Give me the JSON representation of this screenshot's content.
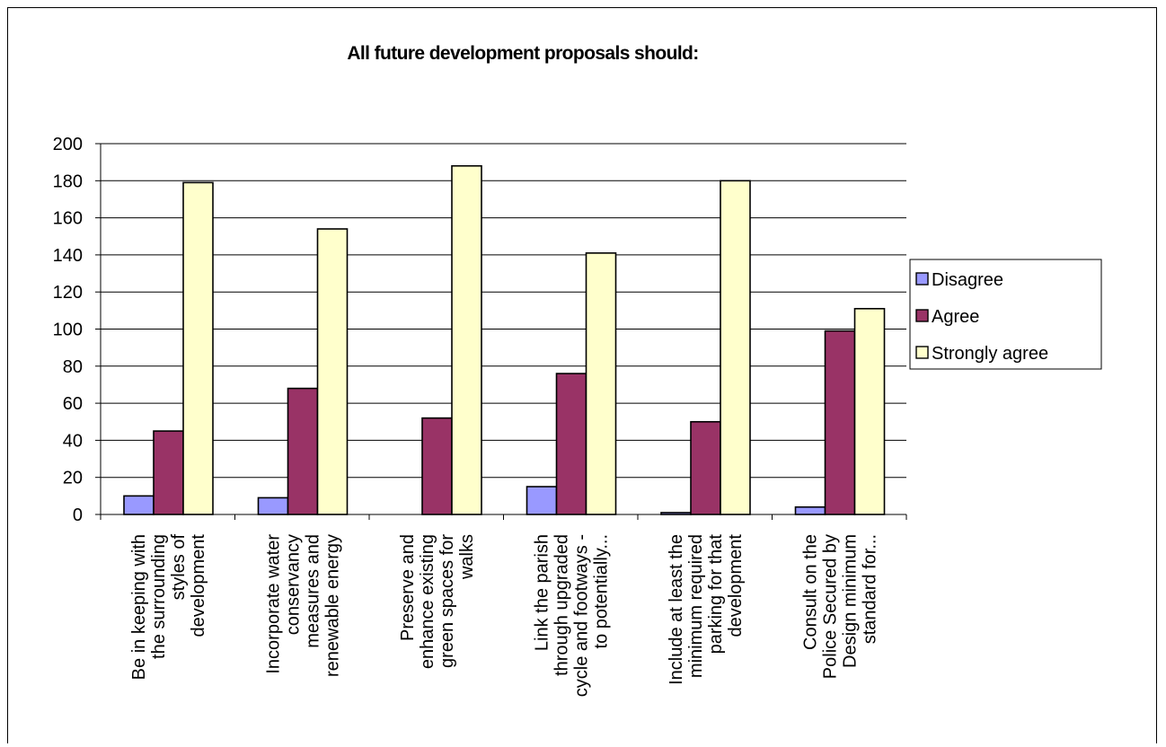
{
  "chart_data": {
    "type": "bar",
    "title": "All future development proposals should:",
    "xlabel": "",
    "ylabel": "",
    "ylim": [
      0,
      200
    ],
    "yticks": [
      0,
      20,
      40,
      60,
      80,
      100,
      120,
      140,
      160,
      180,
      200
    ],
    "grid": true,
    "legend_position": "right",
    "categories": [
      [
        "Be in keeping with",
        "the surrounding",
        "styles of",
        "development"
      ],
      [
        "Incorporate water",
        "conservancy",
        "measures and",
        "renewable energy"
      ],
      [
        "Preserve and",
        "enhance existing",
        "green spaces for",
        "walks"
      ],
      [
        "Link the parish",
        "through upgraded",
        "cycle and footways -",
        "to potentially..."
      ],
      [
        "Include at least the",
        "minimum required",
        "parking for that",
        "development"
      ],
      [
        "Consult on the",
        "Police Secured by",
        "Design minimum",
        "standard for..."
      ]
    ],
    "series": [
      {
        "name": "Disagree",
        "color": "#9999ff",
        "values": [
          10,
          9,
          0,
          15,
          1,
          4
        ]
      },
      {
        "name": "Agree",
        "color": "#993366",
        "values": [
          45,
          68,
          52,
          76,
          50,
          99
        ]
      },
      {
        "name": "Strongly agree",
        "color": "#ffffcc",
        "values": [
          179,
          154,
          188,
          141,
          180,
          111
        ]
      }
    ]
  }
}
